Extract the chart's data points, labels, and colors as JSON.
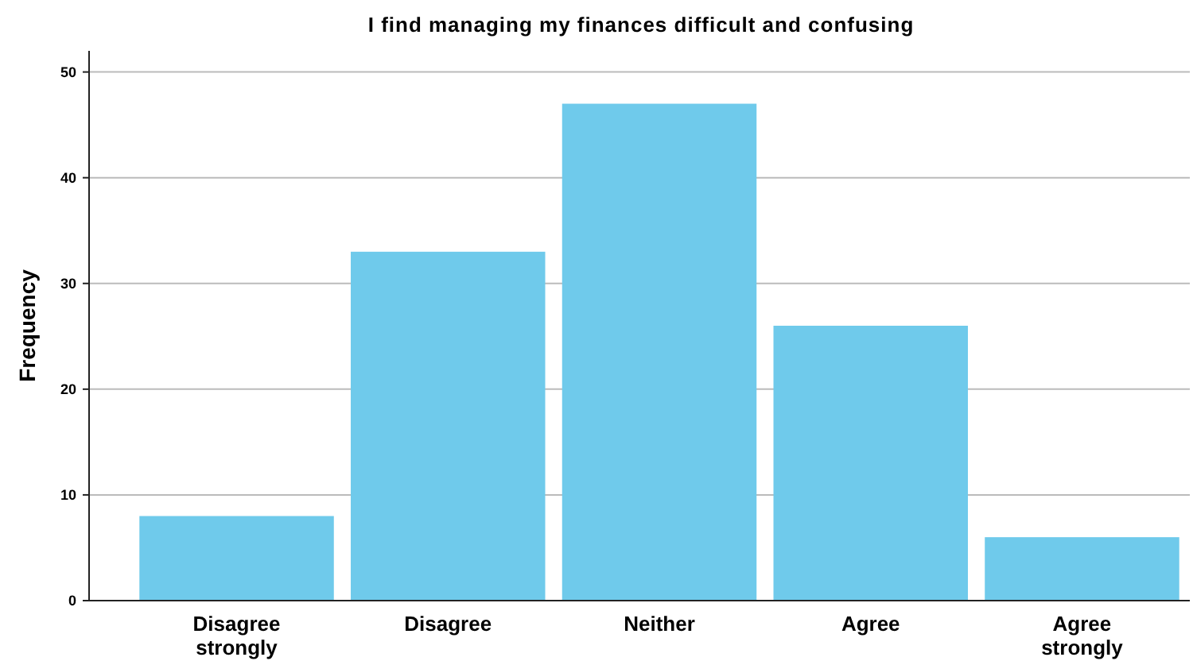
{
  "chart_data": {
    "type": "bar",
    "title": "I find managing my finances difficult and confusing",
    "ylabel": "Frequency",
    "categories": [
      "Disagree strongly",
      "Disagree",
      "Neither",
      "Agree",
      "Agree strongly"
    ],
    "values": [
      8,
      33,
      47,
      26,
      6
    ],
    "color": "#6fcaeb",
    "ylim": [
      0,
      52
    ],
    "yticks": [
      0,
      10,
      20,
      30,
      40,
      50
    ],
    "grid": "y"
  }
}
